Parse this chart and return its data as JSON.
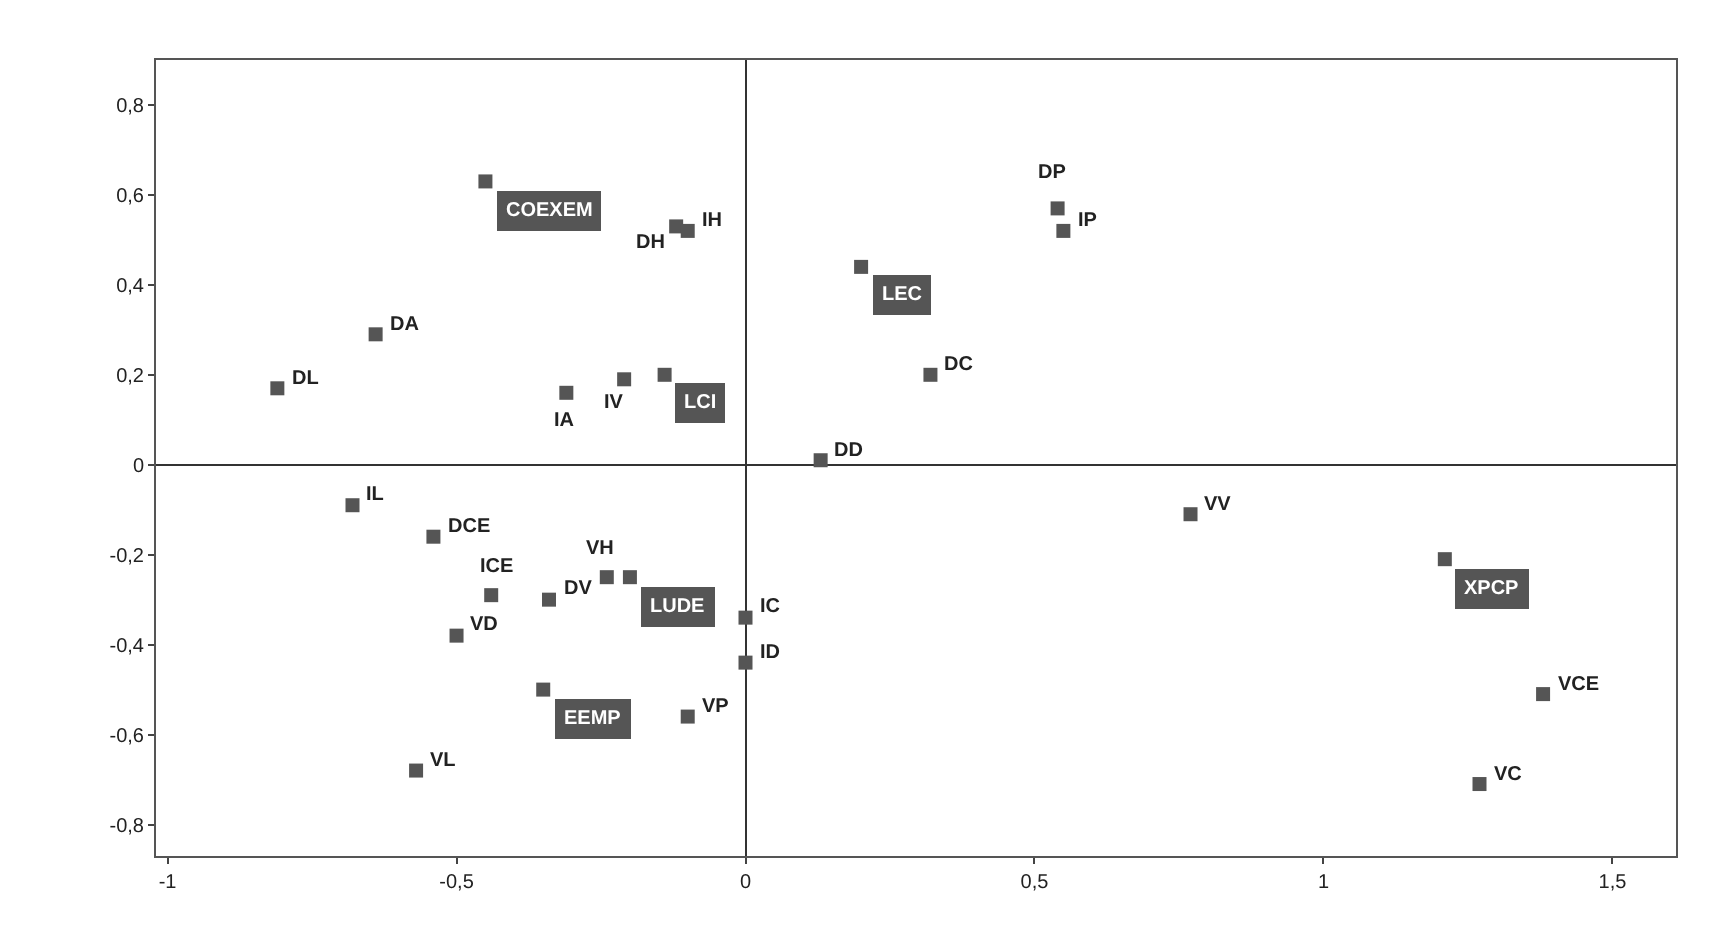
{
  "chart_data": {
    "type": "scatter",
    "marker": "square",
    "xlim": [
      -1.02,
      1.61
    ],
    "ylim": [
      -0.87,
      0.9
    ],
    "xticks": [
      -1,
      {
        "value": -0.5,
        "label": "-0,5"
      },
      0,
      {
        "value": 0.5,
        "label": "0,5"
      },
      1,
      {
        "value": 1.5,
        "label": "1,5"
      }
    ],
    "yticks": [
      {
        "value": -0.8,
        "label": "-0,8"
      },
      {
        "value": -0.6,
        "label": "-0,6"
      },
      {
        "value": -0.4,
        "label": "-0,4"
      },
      {
        "value": -0.2,
        "label": "-0,2"
      },
      0,
      {
        "value": 0.2,
        "label": "0,2"
      },
      {
        "value": 0.4,
        "label": "0,4"
      },
      {
        "value": 0.6,
        "label": "0,6"
      },
      {
        "value": 0.8,
        "label": "0,8"
      }
    ],
    "series": [
      {
        "color": "#555555",
        "x": [
          -0.12,
          -0.1,
          -0.64,
          -0.81,
          -0.31,
          -0.21,
          -0.68,
          0.54,
          0.55,
          0.32,
          0.13,
          0.77,
          0.0,
          0.0,
          1.38,
          1.27,
          -0.54,
          -0.44,
          -0.5,
          -0.34,
          -0.24,
          -0.1,
          -0.57
        ],
        "values": [
          0.53,
          0.52,
          0.29,
          0.17,
          0.16,
          0.19,
          -0.09,
          0.57,
          0.52,
          0.2,
          0.01,
          -0.11,
          -0.34,
          -0.44,
          -0.51,
          -0.71,
          -0.16,
          -0.29,
          -0.38,
          -0.3,
          -0.25,
          -0.56,
          -0.68
        ]
      },
      {
        "color": "#555555",
        "x": [
          -0.45,
          -0.14,
          0.2,
          -0.2,
          -0.35,
          1.21
        ],
        "values": [
          0.63,
          0.2,
          0.44,
          -0.25,
          -0.5,
          -0.21
        ]
      }
    ],
    "annotations": [
      {
        "text": "DH",
        "x": -0.12,
        "y": 0.53
      },
      {
        "text": "IH",
        "x": -0.1,
        "y": 0.52
      },
      {
        "text": "DA",
        "x": -0.64,
        "y": 0.29
      },
      {
        "text": "DL",
        "x": -0.81,
        "y": 0.17
      },
      {
        "text": "IA",
        "x": -0.31,
        "y": 0.16
      },
      {
        "text": "IV",
        "x": -0.21,
        "y": 0.19
      },
      {
        "text": "IL",
        "x": -0.68,
        "y": -0.09
      },
      {
        "text": "DP",
        "x": 0.54,
        "y": 0.57
      },
      {
        "text": "IP",
        "x": 0.55,
        "y": 0.52
      },
      {
        "text": "DC",
        "x": 0.32,
        "y": 0.2
      },
      {
        "text": "DD",
        "x": 0.13,
        "y": 0.01
      },
      {
        "text": "VV",
        "x": 0.77,
        "y": -0.11
      },
      {
        "text": "IC",
        "x": 0.0,
        "y": -0.34
      },
      {
        "text": "ID",
        "x": 0.0,
        "y": -0.44
      },
      {
        "text": "VCE",
        "x": 1.38,
        "y": -0.51
      },
      {
        "text": "VC",
        "x": 1.27,
        "y": -0.71
      },
      {
        "text": "DCE",
        "x": -0.54,
        "y": -0.16
      },
      {
        "text": "ICE",
        "x": -0.44,
        "y": -0.29
      },
      {
        "text": "VD",
        "x": -0.5,
        "y": -0.38
      },
      {
        "text": "DV",
        "x": -0.34,
        "y": -0.3
      },
      {
        "text": "VH",
        "x": -0.24,
        "y": -0.25
      },
      {
        "text": "VP",
        "x": -0.1,
        "y": -0.56
      },
      {
        "text": "VL",
        "x": -0.57,
        "y": -0.68
      },
      {
        "text": "COEXEM",
        "x": -0.45,
        "y": 0.63
      },
      {
        "text": "LCI",
        "x": -0.14,
        "y": 0.2
      },
      {
        "text": "LEC",
        "x": 0.2,
        "y": 0.44
      },
      {
        "text": "LUDE",
        "x": -0.2,
        "y": -0.25
      },
      {
        "text": "EEMP",
        "x": -0.35,
        "y": -0.5
      },
      {
        "text": "XPCP",
        "x": 1.21,
        "y": -0.21
      }
    ]
  }
}
